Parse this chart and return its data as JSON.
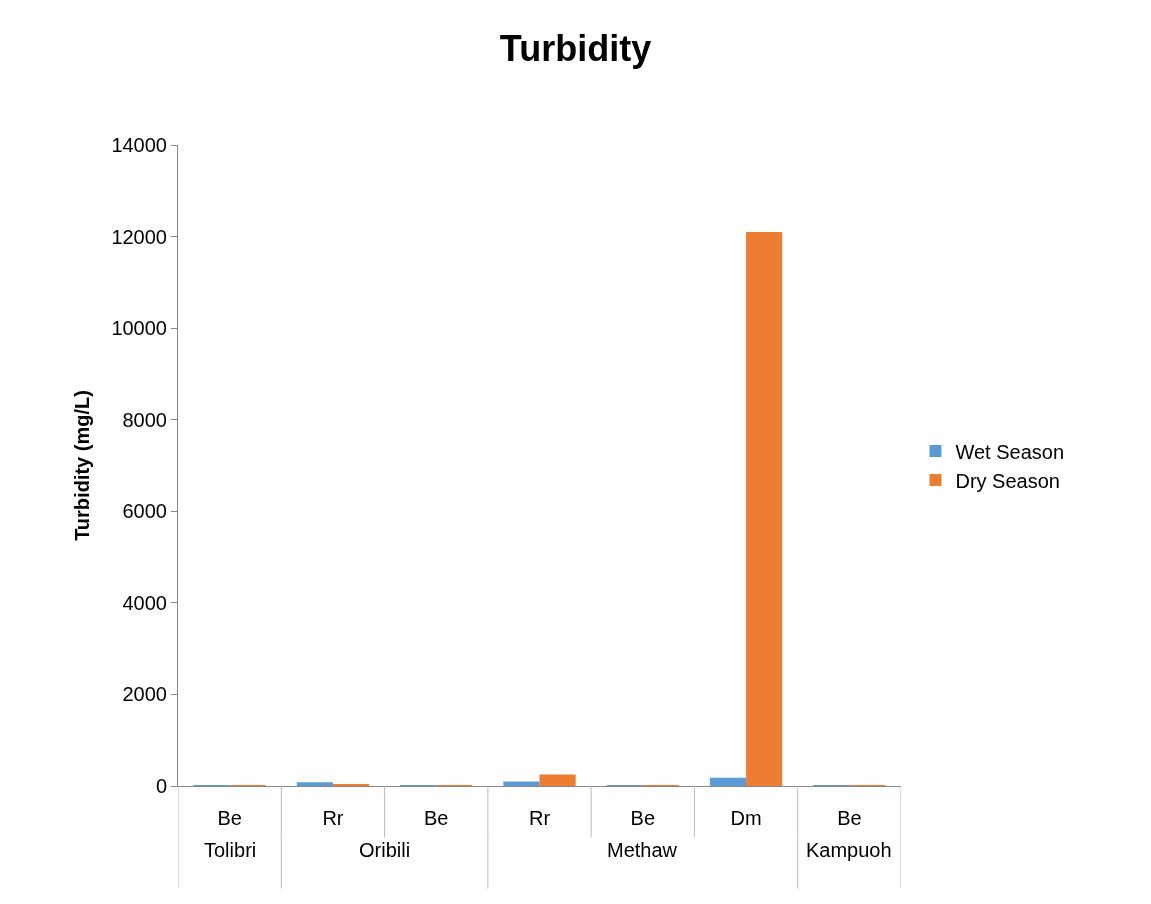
{
  "chart_data": {
    "type": "bar",
    "title": "Turbidity",
    "ylabel": "Turbidity (mg/L)",
    "categories": [
      "Be",
      "Rr",
      "Be",
      "Rr",
      "Be",
      "Dm",
      "Be"
    ],
    "series": [
      {
        "name": "Wet Season",
        "color": "#5b9bd5",
        "values": [
          20,
          80,
          20,
          100,
          10,
          180,
          10
        ]
      },
      {
        "name": "Dry Season",
        "color": "#ed7d31",
        "values": [
          20,
          30,
          20,
          250,
          10,
          12100,
          10
        ]
      }
    ],
    "ylim": [
      0,
      14000
    ],
    "yticks": [
      0,
      2000,
      4000,
      6000,
      8000,
      10000,
      12000,
      14000
    ],
    "grid": false,
    "legend": "right",
    "annotations": [
      "Tolibri",
      "Oribili",
      "Methaw",
      "Kampuoh"
    ]
  }
}
